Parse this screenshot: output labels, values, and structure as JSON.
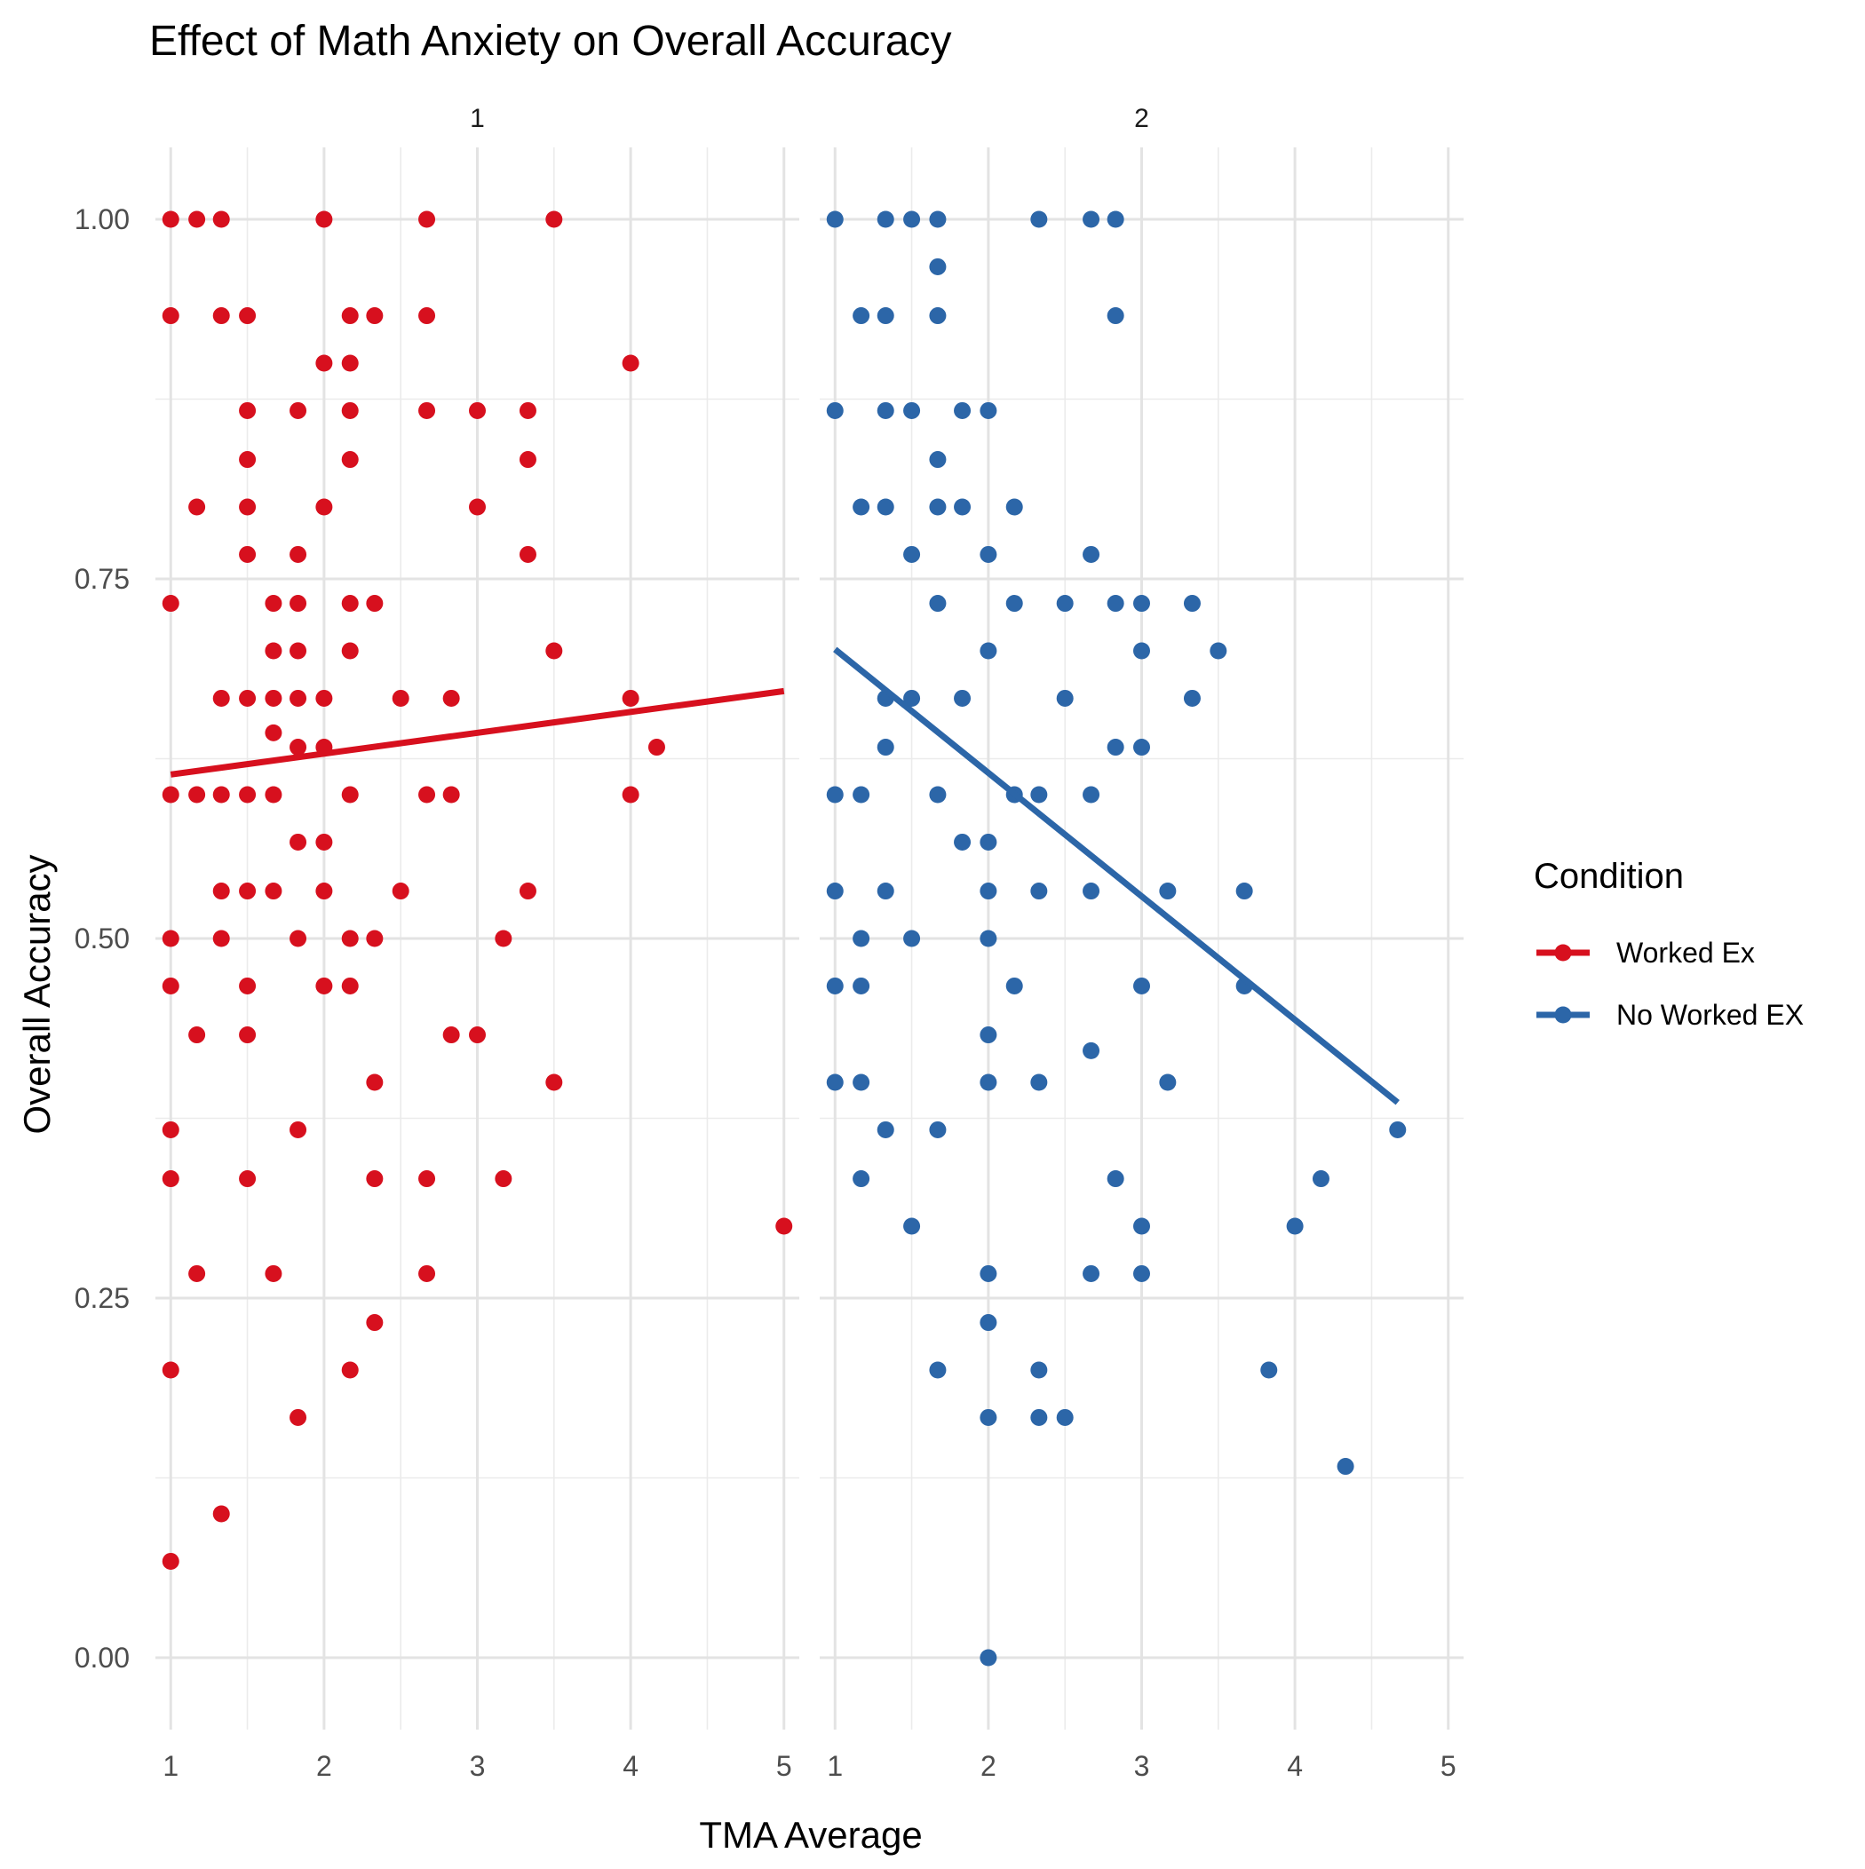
{
  "chart_data": {
    "type": "scatter",
    "title": "Effect of Math Anxiety on Overall Accuracy",
    "xlabel": "TMA Average",
    "ylabel": "Overall Accuracy",
    "xlim": [
      0.9,
      5.1
    ],
    "ylim": [
      -0.05,
      1.05
    ],
    "x_ticks": [
      1,
      2,
      3,
      4,
      5
    ],
    "y_ticks": [
      0.0,
      0.25,
      0.5,
      0.75,
      1.0
    ],
    "y_tick_labels": [
      "0.00",
      "0.25",
      "0.50",
      "0.75",
      "1.00"
    ],
    "grid": true,
    "legend": {
      "title": "Condition",
      "placement": "right",
      "entries": [
        {
          "label": "Worked Ex",
          "color": "#d7101e"
        },
        {
          "label": "No Worked EX",
          "color": "#2c66a8"
        }
      ]
    },
    "panels": [
      {
        "strip_label": "1",
        "series": "Worked Ex",
        "color": "#d7101e",
        "trend_line": {
          "x": [
            1.0,
            5.0
          ],
          "y": [
            0.614,
            0.672
          ]
        },
        "points": [
          [
            1.0,
            1.0
          ],
          [
            1.17,
            1.0
          ],
          [
            1.33,
            1.0
          ],
          [
            2.0,
            1.0
          ],
          [
            2.67,
            1.0
          ],
          [
            3.5,
            1.0
          ],
          [
            1.0,
            0.933
          ],
          [
            1.33,
            0.933
          ],
          [
            1.5,
            0.933
          ],
          [
            2.17,
            0.933
          ],
          [
            2.33,
            0.933
          ],
          [
            2.67,
            0.933
          ],
          [
            2.0,
            0.9
          ],
          [
            2.17,
            0.9
          ],
          [
            4.0,
            0.9
          ],
          [
            1.5,
            0.867
          ],
          [
            1.83,
            0.867
          ],
          [
            2.17,
            0.867
          ],
          [
            2.67,
            0.867
          ],
          [
            3.0,
            0.867
          ],
          [
            3.33,
            0.867
          ],
          [
            1.5,
            0.833
          ],
          [
            2.17,
            0.833
          ],
          [
            3.33,
            0.833
          ],
          [
            1.17,
            0.8
          ],
          [
            1.5,
            0.8
          ],
          [
            2.0,
            0.8
          ],
          [
            3.0,
            0.8
          ],
          [
            1.5,
            0.767
          ],
          [
            1.83,
            0.767
          ],
          [
            3.33,
            0.767
          ],
          [
            1.0,
            0.733
          ],
          [
            1.67,
            0.733
          ],
          [
            1.83,
            0.733
          ],
          [
            2.17,
            0.733
          ],
          [
            2.33,
            0.733
          ],
          [
            1.67,
            0.7
          ],
          [
            1.83,
            0.7
          ],
          [
            2.17,
            0.7
          ],
          [
            3.5,
            0.7
          ],
          [
            1.33,
            0.667
          ],
          [
            1.5,
            0.667
          ],
          [
            1.67,
            0.667
          ],
          [
            1.83,
            0.667
          ],
          [
            2.0,
            0.667
          ],
          [
            2.5,
            0.667
          ],
          [
            2.83,
            0.667
          ],
          [
            4.0,
            0.667
          ],
          [
            1.67,
            0.643
          ],
          [
            1.83,
            0.633
          ],
          [
            2.0,
            0.633
          ],
          [
            4.17,
            0.633
          ],
          [
            1.0,
            0.6
          ],
          [
            1.17,
            0.6
          ],
          [
            1.33,
            0.6
          ],
          [
            1.5,
            0.6
          ],
          [
            1.67,
            0.6
          ],
          [
            2.17,
            0.6
          ],
          [
            2.67,
            0.6
          ],
          [
            2.83,
            0.6
          ],
          [
            4.0,
            0.6
          ],
          [
            1.83,
            0.567
          ],
          [
            2.0,
            0.567
          ],
          [
            1.33,
            0.533
          ],
          [
            1.5,
            0.533
          ],
          [
            1.67,
            0.533
          ],
          [
            2.0,
            0.533
          ],
          [
            2.5,
            0.533
          ],
          [
            3.33,
            0.533
          ],
          [
            1.0,
            0.5
          ],
          [
            1.33,
            0.5
          ],
          [
            1.83,
            0.5
          ],
          [
            2.17,
            0.5
          ],
          [
            2.33,
            0.5
          ],
          [
            3.17,
            0.5
          ],
          [
            1.0,
            0.467
          ],
          [
            1.5,
            0.467
          ],
          [
            2.0,
            0.467
          ],
          [
            2.17,
            0.467
          ],
          [
            1.17,
            0.433
          ],
          [
            1.5,
            0.433
          ],
          [
            2.83,
            0.433
          ],
          [
            3.0,
            0.433
          ],
          [
            2.33,
            0.4
          ],
          [
            3.5,
            0.4
          ],
          [
            1.0,
            0.367
          ],
          [
            1.83,
            0.367
          ],
          [
            1.0,
            0.333
          ],
          [
            1.5,
            0.333
          ],
          [
            2.33,
            0.333
          ],
          [
            2.67,
            0.333
          ],
          [
            3.17,
            0.333
          ],
          [
            5.0,
            0.3
          ],
          [
            1.17,
            0.267
          ],
          [
            1.67,
            0.267
          ],
          [
            2.67,
            0.267
          ],
          [
            2.33,
            0.233
          ],
          [
            1.0,
            0.2
          ],
          [
            2.17,
            0.2
          ],
          [
            1.83,
            0.167
          ],
          [
            1.33,
            0.1
          ],
          [
            1.0,
            0.067
          ]
        ]
      },
      {
        "strip_label": "2",
        "series": "No Worked EX",
        "color": "#2c66a8",
        "trend_line": {
          "x": [
            1.0,
            4.67
          ],
          "y": [
            0.701,
            0.386
          ]
        },
        "points": [
          [
            1.0,
            1.0
          ],
          [
            1.33,
            1.0
          ],
          [
            1.5,
            1.0
          ],
          [
            1.67,
            1.0
          ],
          [
            2.33,
            1.0
          ],
          [
            2.67,
            1.0
          ],
          [
            2.83,
            1.0
          ],
          [
            1.67,
            0.967
          ],
          [
            1.17,
            0.933
          ],
          [
            1.33,
            0.933
          ],
          [
            1.67,
            0.933
          ],
          [
            2.83,
            0.933
          ],
          [
            1.0,
            0.867
          ],
          [
            1.33,
            0.867
          ],
          [
            1.5,
            0.867
          ],
          [
            1.83,
            0.867
          ],
          [
            2.0,
            0.867
          ],
          [
            1.67,
            0.833
          ],
          [
            1.17,
            0.8
          ],
          [
            1.33,
            0.8
          ],
          [
            1.67,
            0.8
          ],
          [
            1.83,
            0.8
          ],
          [
            2.17,
            0.8
          ],
          [
            1.5,
            0.767
          ],
          [
            2.0,
            0.767
          ],
          [
            2.67,
            0.767
          ],
          [
            1.67,
            0.733
          ],
          [
            2.17,
            0.733
          ],
          [
            2.5,
            0.733
          ],
          [
            2.83,
            0.733
          ],
          [
            3.0,
            0.733
          ],
          [
            3.33,
            0.733
          ],
          [
            2.0,
            0.7
          ],
          [
            3.0,
            0.7
          ],
          [
            3.5,
            0.7
          ],
          [
            1.33,
            0.667
          ],
          [
            1.5,
            0.667
          ],
          [
            1.83,
            0.667
          ],
          [
            2.5,
            0.667
          ],
          [
            3.33,
            0.667
          ],
          [
            1.33,
            0.633
          ],
          [
            2.83,
            0.633
          ],
          [
            3.0,
            0.633
          ],
          [
            1.0,
            0.6
          ],
          [
            1.17,
            0.6
          ],
          [
            1.67,
            0.6
          ],
          [
            2.17,
            0.6
          ],
          [
            2.33,
            0.6
          ],
          [
            2.67,
            0.6
          ],
          [
            1.83,
            0.567
          ],
          [
            2.0,
            0.567
          ],
          [
            1.0,
            0.533
          ],
          [
            1.33,
            0.533
          ],
          [
            2.0,
            0.533
          ],
          [
            2.33,
            0.533
          ],
          [
            2.67,
            0.533
          ],
          [
            3.17,
            0.533
          ],
          [
            3.67,
            0.533
          ],
          [
            1.17,
            0.5
          ],
          [
            1.5,
            0.5
          ],
          [
            2.0,
            0.5
          ],
          [
            1.0,
            0.467
          ],
          [
            1.17,
            0.467
          ],
          [
            2.17,
            0.467
          ],
          [
            3.0,
            0.467
          ],
          [
            3.67,
            0.467
          ],
          [
            2.0,
            0.433
          ],
          [
            2.67,
            0.422
          ],
          [
            1.0,
            0.4
          ],
          [
            1.17,
            0.4
          ],
          [
            2.0,
            0.4
          ],
          [
            2.33,
            0.4
          ],
          [
            3.17,
            0.4
          ],
          [
            1.33,
            0.367
          ],
          [
            1.67,
            0.367
          ],
          [
            4.67,
            0.367
          ],
          [
            1.17,
            0.333
          ],
          [
            2.83,
            0.333
          ],
          [
            4.17,
            0.333
          ],
          [
            1.5,
            0.3
          ],
          [
            3.0,
            0.3
          ],
          [
            4.0,
            0.3
          ],
          [
            2.0,
            0.267
          ],
          [
            2.67,
            0.267
          ],
          [
            3.0,
            0.267
          ],
          [
            2.0,
            0.233
          ],
          [
            1.67,
            0.2
          ],
          [
            2.33,
            0.2
          ],
          [
            3.83,
            0.2
          ],
          [
            2.0,
            0.167
          ],
          [
            2.33,
            0.167
          ],
          [
            2.5,
            0.167
          ],
          [
            4.33,
            0.133
          ],
          [
            2.0,
            0.0
          ]
        ]
      }
    ]
  }
}
